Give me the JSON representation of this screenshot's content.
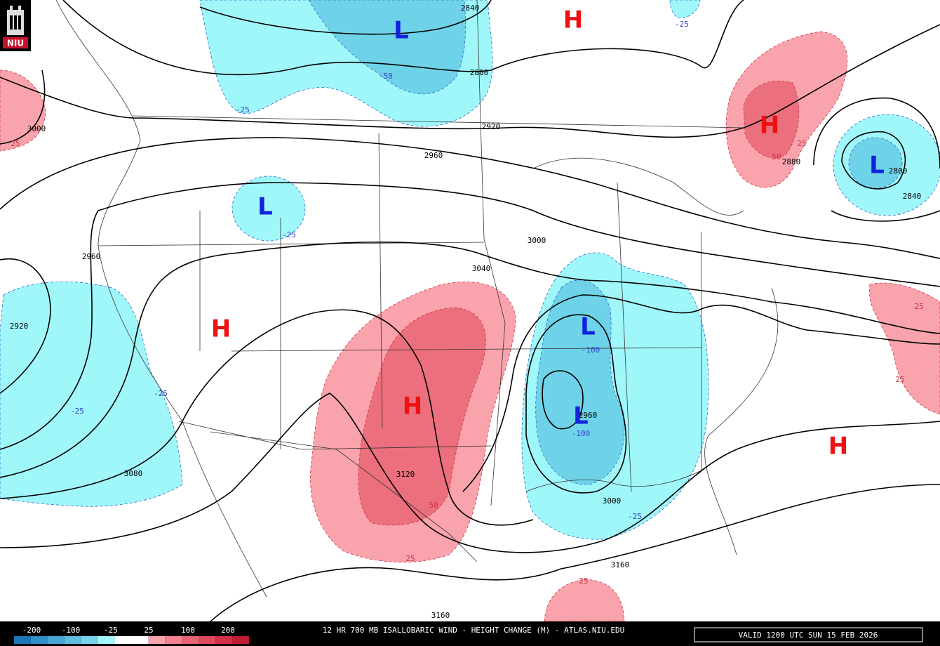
{
  "logo": "NIU",
  "centers": [
    "L",
    "H",
    "H",
    "L",
    "L",
    "H",
    "H",
    "L",
    "L",
    "H"
  ],
  "contour_labels": [
    2840,
    2880,
    2920,
    2960,
    3000,
    3040,
    3000,
    2960,
    2920,
    3080,
    3120,
    3160,
    3160,
    2880,
    2800,
    2840,
    2960,
    3000
  ],
  "change_labels": [
    -25,
    -50,
    -25,
    -25,
    -25,
    -25,
    -100,
    -100,
    -25,
    25,
    50,
    25,
    25,
    25,
    50,
    25,
    25
  ],
  "colorbar": {
    "labels": [
      -200,
      -100,
      -25,
      25,
      100,
      200
    ],
    "colors": [
      "#1b78b8",
      "#2f8fc8",
      "#45a6d6",
      "#5dbde2",
      "#78d2ea",
      "#9ff7fa",
      "#ffffff",
      "#ffffff",
      "#f9a3ad",
      "#f2838f",
      "#e86474",
      "#dd4a5e",
      "#d03048",
      "#c01a36"
    ]
  },
  "footer": {
    "title": "12 HR 700 MB ISALLOBARIC WIND - HEIGHT CHANGE (M) - ATLAS.NIU.EDU",
    "valid": "VALID 1200 UTC SUN 15 FEB 2026"
  }
}
